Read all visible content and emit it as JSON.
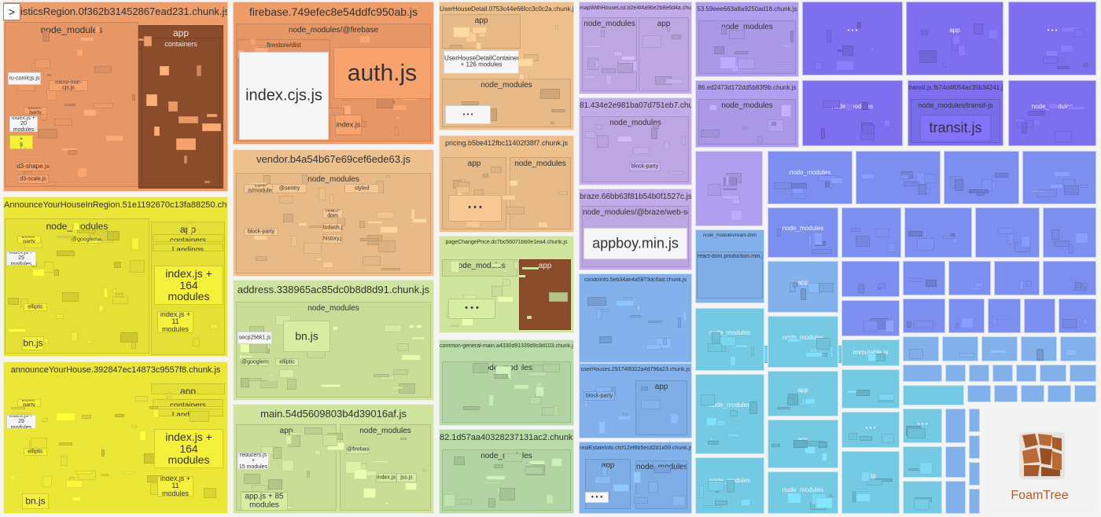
{
  "sidebar_toggle": ">",
  "brand": "FoamTree",
  "colors": {
    "orange": "#ee9c69",
    "yellow": "#ece737",
    "peach": "#eec08c",
    "lightgreen": "#cfe49c",
    "sage": "#b8dba7",
    "lavender": "#c3abe9",
    "purple": "#b09eef",
    "indigo": "#7d6ff0",
    "blue": "#7c8ff0",
    "skyblue": "#82b1ec",
    "cyan": "#74cae3",
    "brown": "#8a4c2a",
    "white": "#ffffff"
  },
  "chunks": [
    {
      "name": "statisticsRegion.0f362b31452867ead231.chunk.js",
      "groups": [
        {
          "label": "node_modules"
        },
        {
          "label": "app"
        },
        {
          "label": "containers"
        }
      ],
      "modules": [
        "ru-comlcjs.js",
        "micro-mor-cjs.js",
        "index.js +\n20 modules",
        "index.js +\n9 modules",
        "d3-shape.js",
        "block-party",
        "d3-scale.js"
      ]
    },
    {
      "name": "AnnounceYourHouseInRegion.51e1192670c13fa88250.chunk.js",
      "groups": [
        {
          "label": "node_modules"
        },
        {
          "label": "app"
        },
        {
          "label": "containers"
        },
        {
          "label": "Landings"
        }
      ],
      "modules": [
        "index.js +\n164\nmodules",
        "index.js +\n11 modules",
        "bn.js",
        "index.js + 29\nmodules",
        "block-party",
        "@googlemaps.js",
        "elliptic"
      ]
    },
    {
      "name": "announceYourHouse.392847ec14873c9557f8.chunk.js",
      "groups": [
        {
          "label": "app"
        },
        {
          "label": "containers"
        },
        {
          "label": "Landings"
        }
      ],
      "modules": [
        "index.js +\n164\nmodules",
        "index.js + 11\nmodules",
        "bn.js",
        "index.js + 29\nmodules",
        "block-party",
        "elliptic"
      ]
    },
    {
      "name": "firebase.749efec8e54ddfc950ab.js",
      "groups": [
        {
          "label": "node_modules/@firebase"
        },
        {
          "label": "firestore/dist"
        }
      ],
      "modules": [
        "index.cjs.js",
        "auth.js",
        "index.js"
      ]
    },
    {
      "name": "vendor.b4a54b67e69cef6ede63.js",
      "groups": [
        {
          "label": "node_modules"
        }
      ],
      "modules": [
        "core-js/modules",
        "@sentry",
        "styled",
        "react-dom",
        "block-party",
        "lodash.js",
        "history.js"
      ]
    },
    {
      "name": "address.338965ac85dc0b8d8d91.chunk.js",
      "groups": [
        {
          "label": "node_modules"
        }
      ],
      "modules": [
        "bn.js",
        "secp256k1.js",
        "@googlemaps",
        "elliptic"
      ]
    },
    {
      "name": "main.54d5609803b4d39016af.js",
      "groups": [
        {
          "label": "app"
        },
        {
          "label": "node_modules"
        }
      ],
      "modules": [
        "app.js + 85\nmodules",
        "reducers.js +\n15 modules",
        "@firebase",
        "index.js",
        "jss.js"
      ]
    },
    {
      "name": "UserHouseDetail.0753c44e66fcc3c0c2a.chunk.js",
      "groups": [
        {
          "label": "app"
        },
        {
          "label": "node_modules"
        }
      ],
      "modules": [
        "UserHouseDetailContainer.js\n+ 126 modules",
        "• • •"
      ]
    },
    {
      "name": "pricing.b5be412fbc11402f38f7.chunk.js",
      "groups": [
        {
          "label": "app"
        },
        {
          "label": "node_modules"
        }
      ],
      "modules": [
        "• • •"
      ]
    },
    {
      "name": "pageChangePrice.dc7bc56071bb0e1ea4.chunk.js",
      "groups": [
        {
          "label": "node_modules"
        },
        {
          "label": "app"
        }
      ],
      "modules": [
        "• • •"
      ]
    },
    {
      "name": "common-general-main.a4330d91339d9c8d103.chunk.js",
      "groups": [
        {
          "label": "node_modules"
        }
      ],
      "modules": []
    },
    {
      "name": "82.1d57aa40328237131ac2.chunk.js",
      "groups": [
        {
          "label": "node_modules"
        }
      ],
      "modules": []
    },
    {
      "name": "mapWithHouseList.b2e4f4a9be2b8e6d4a.chunk.js",
      "groups": [
        {
          "label": "node_modules"
        },
        {
          "label": "app"
        }
      ],
      "modules": []
    },
    {
      "name": "81.434e2e981ba07d751eb7.chunk.js",
      "groups": [
        {
          "label": "node_modules"
        }
      ],
      "modules": [
        "block-party"
      ]
    },
    {
      "name": "braze.66bb63f81b54b0f1527c.js",
      "groups": [
        {
          "label": "node_modules/@braze/web-sdk"
        }
      ],
      "modules": [
        "appboy.min.js"
      ]
    },
    {
      "name": "condoInfo.5eb34ae4a5873dc6ad.chunk.js",
      "groups": [],
      "modules": []
    },
    {
      "name": "userHouses.29174f8322a4d796a23.chunk.js",
      "groups": [
        {
          "label": "app"
        }
      ],
      "modules": [
        "block-party"
      ]
    },
    {
      "name": "realEstateInfo.cfcf12ef8b5ecd2d1a59.chunk.js",
      "groups": [
        {
          "label": "app"
        },
        {
          "label": "node_modules"
        }
      ],
      "modules": [
        "• • •"
      ]
    },
    {
      "name": "53.59eee663a8a9250ad18.chunk.js",
      "groups": [
        {
          "label": "node_modules"
        }
      ],
      "modules": []
    },
    {
      "name": "86.ed2473d172dd5b83f9b.chunk.js",
      "groups": [
        {
          "label": "node_modules"
        }
      ],
      "modules": []
    },
    {
      "name": "transit.js.fb74d4f054ac35b34241.js",
      "groups": [
        {
          "label": "node_modules/transit-js"
        }
      ],
      "modules": [
        "transit.js"
      ]
    },
    {
      "name": "node_modules/react-dom",
      "groups": [
        {
          "label": "react-dom.production.min.js"
        }
      ],
      "modules": [
        "immutable.js"
      ]
    }
  ]
}
